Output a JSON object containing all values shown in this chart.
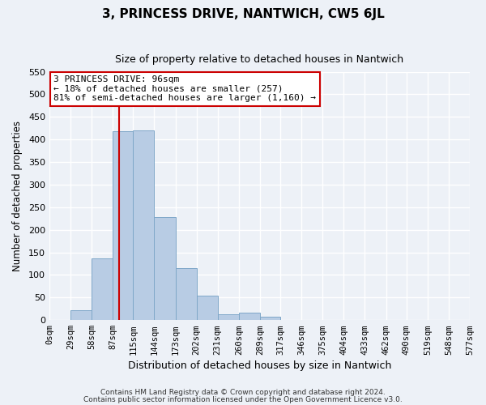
{
  "title": "3, PRINCESS DRIVE, NANTWICH, CW5 6JL",
  "subtitle": "Size of property relative to detached houses in Nantwich",
  "xlabel": "Distribution of detached houses by size in Nantwich",
  "ylabel": "Number of detached properties",
  "bar_edges": [
    0,
    29,
    58,
    87,
    115,
    144,
    173,
    202,
    231,
    260,
    289,
    317,
    346,
    375,
    404,
    433,
    462,
    490,
    519,
    548,
    577
  ],
  "bar_heights": [
    0,
    22,
    137,
    418,
    421,
    228,
    115,
    55,
    13,
    17,
    7,
    0,
    0,
    0,
    0,
    0,
    0,
    0,
    0,
    0
  ],
  "bar_color": "#b8cce4",
  "bar_edge_color": "#7fa7c8",
  "property_line_x": 96,
  "property_line_color": "#cc0000",
  "ylim": [
    0,
    550
  ],
  "xlim": [
    0,
    577
  ],
  "annotation_title": "3 PRINCESS DRIVE: 96sqm",
  "annotation_line1": "← 18% of detached houses are smaller (257)",
  "annotation_line2": "81% of semi-detached houses are larger (1,160) →",
  "annotation_box_color": "#cc0000",
  "tick_labels": [
    "0sqm",
    "29sqm",
    "58sqm",
    "87sqm",
    "115sqm",
    "144sqm",
    "173sqm",
    "202sqm",
    "231sqm",
    "260sqm",
    "289sqm",
    "317sqm",
    "346sqm",
    "375sqm",
    "404sqm",
    "433sqm",
    "462sqm",
    "490sqm",
    "519sqm",
    "548sqm",
    "577sqm"
  ],
  "yticks": [
    0,
    50,
    100,
    150,
    200,
    250,
    300,
    350,
    400,
    450,
    500,
    550
  ],
  "footer_line1": "Contains HM Land Registry data © Crown copyright and database right 2024.",
  "footer_line2": "Contains public sector information licensed under the Open Government Licence v3.0.",
  "background_color": "#edf1f7",
  "grid_color": "#ffffff",
  "title_fontsize": 11,
  "subtitle_fontsize": 9,
  "xlabel_fontsize": 9,
  "ylabel_fontsize": 8.5,
  "tick_fontsize": 7.5,
  "footer_fontsize": 6.5
}
